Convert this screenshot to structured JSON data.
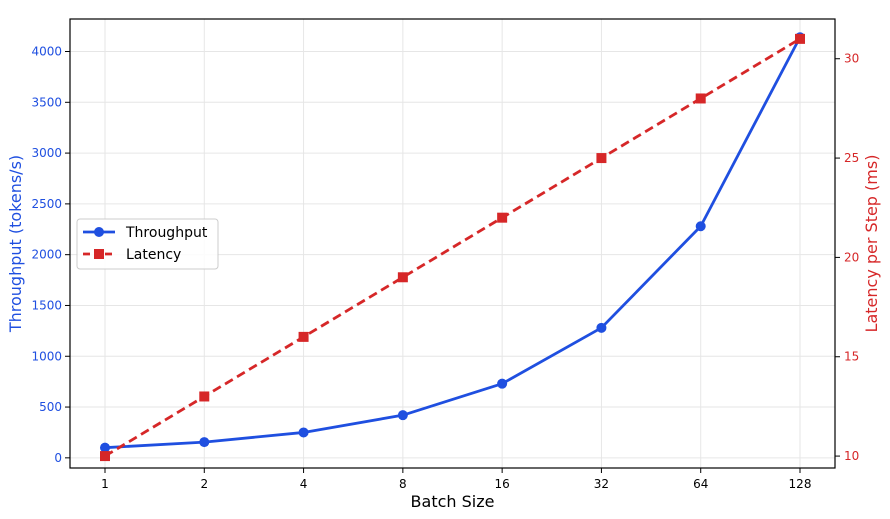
{
  "chart_data": {
    "type": "line",
    "x": [
      "1",
      "2",
      "4",
      "8",
      "16",
      "32",
      "64",
      "128"
    ],
    "xlabel": "Batch Size",
    "ylabel_left": "Throughput (tokens/s)",
    "ylabel_right": "Latency per Step (ms)",
    "ylim_left": [
      -100,
      4320
    ],
    "ylim_right": [
      9.4,
      32
    ],
    "yticks_left": [
      "0",
      "500",
      "1000",
      "1500",
      "2000",
      "2500",
      "3000",
      "3500",
      "4000"
    ],
    "yticks_right": [
      "10",
      "15",
      "20",
      "25",
      "30"
    ],
    "grid": true,
    "legend_position": "center-left",
    "series": [
      {
        "name": "Throughput",
        "axis": "left",
        "values": [
          100,
          155,
          250,
          420,
          730,
          1280,
          2280,
          4140
        ],
        "color": "#1f4fe0",
        "line_style": "solid",
        "marker": "circle"
      },
      {
        "name": "Latency",
        "axis": "right",
        "values": [
          10,
          13,
          16,
          19,
          22,
          25,
          28,
          31
        ],
        "color": "#d62728",
        "line_style": "dashed",
        "marker": "square"
      }
    ],
    "colors": {
      "left_axis": "#1f4fe0",
      "right_axis": "#d62728"
    }
  }
}
